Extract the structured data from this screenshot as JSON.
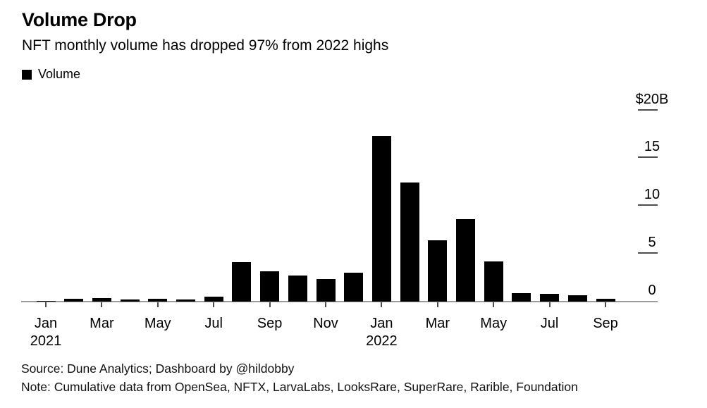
{
  "figure": {
    "title": "Volume Drop",
    "subtitle": "NFT monthly volume has dropped 97% from 2022 highs"
  },
  "legend": {
    "label": "Volume",
    "swatch_color": "#000000"
  },
  "chart_data": {
    "type": "bar",
    "title": "Volume Drop",
    "subtitle": "NFT monthly volume has dropped 97% from 2022 highs",
    "unit": "billions USD",
    "categories": [
      "Jan 2021",
      "Feb 2021",
      "Mar 2021",
      "Apr 2021",
      "May 2021",
      "Jun 2021",
      "Jul 2021",
      "Aug 2021",
      "Sep 2021",
      "Oct 2021",
      "Nov 2021",
      "Dec 2021",
      "Jan 2022",
      "Feb 2022",
      "Mar 2022",
      "Apr 2022",
      "May 2022",
      "Jun 2022",
      "Jul 2022",
      "Aug 2022",
      "Sep 2022"
    ],
    "series": [
      {
        "name": "Volume",
        "values": [
          0.07,
          0.27,
          0.4,
          0.25,
          0.27,
          0.22,
          0.55,
          4.15,
          3.15,
          2.7,
          2.35,
          3.0,
          17.35,
          12.5,
          6.45,
          8.6,
          4.2,
          0.92,
          0.82,
          0.7,
          0.33
        ]
      }
    ],
    "ylim": [
      0,
      20
    ],
    "yticks": [
      {
        "value": 0,
        "label": "0",
        "dash": false
      },
      {
        "value": 5,
        "label": "5",
        "dash": true
      },
      {
        "value": 10,
        "label": "10",
        "dash": true
      },
      {
        "value": 15,
        "label": "15",
        "dash": true
      },
      {
        "value": 20,
        "label": "$20B",
        "dash": true
      }
    ],
    "xticks": [
      {
        "index": 0,
        "label": "Jan",
        "year": "2021"
      },
      {
        "index": 2,
        "label": "Mar"
      },
      {
        "index": 4,
        "label": "May"
      },
      {
        "index": 6,
        "label": "Jul"
      },
      {
        "index": 8,
        "label": "Sep"
      },
      {
        "index": 10,
        "label": "Nov"
      },
      {
        "index": 12,
        "label": "Jan",
        "year": "2022"
      },
      {
        "index": 14,
        "label": "Mar"
      },
      {
        "index": 16,
        "label": "May"
      },
      {
        "index": 18,
        "label": "Jul"
      },
      {
        "index": 20,
        "label": "Sep"
      }
    ],
    "bar_color": "#000000",
    "axis_side": "right",
    "grid": false,
    "legend_position": "top-left"
  },
  "footer": {
    "source": "Source: Dune Analytics; Dashboard by @hildobby",
    "note": "Note: Cumulative data from OpenSea, NFTX, LarvaLabs, LooksRare, SuperRare, Rarible, Foundation"
  },
  "colors": {
    "bar": "#000000",
    "baseline": "#9b9b9b",
    "tick": "#4d4d4d",
    "text": "#000000"
  }
}
